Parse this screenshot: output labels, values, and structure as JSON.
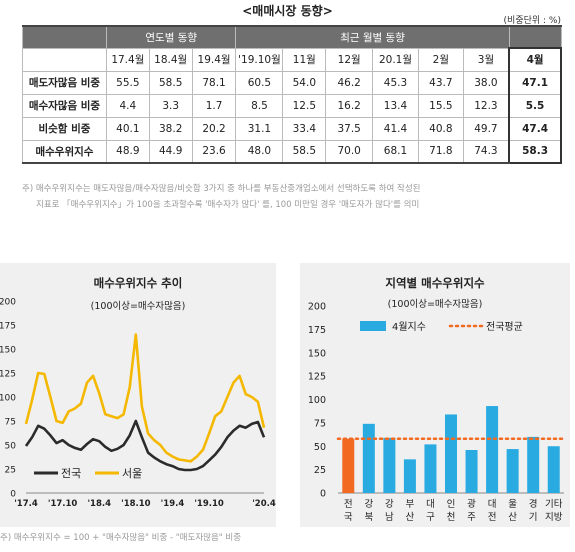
{
  "header": {
    "title": "<매매시장 동향>",
    "unit": "(비중단위 : %)"
  },
  "table": {
    "group_headers": [
      "연도별 동향",
      "최근 월별 동향"
    ],
    "columns": [
      "17.4월",
      "18.4월",
      "19.4월",
      "'19.10월",
      "11월",
      "12월",
      "20.1월",
      "2월",
      "3월",
      "4월"
    ],
    "rows": [
      {
        "label": "매도자많음 비중",
        "values": [
          "55.5",
          "58.5",
          "78.1",
          "60.5",
          "54.0",
          "46.2",
          "45.3",
          "43.7",
          "38.0",
          "47.1"
        ]
      },
      {
        "label": "매수자많음 비중",
        "values": [
          "4.4",
          "3.3",
          "1.7",
          "8.5",
          "12.5",
          "16.2",
          "13.4",
          "15.5",
          "12.3",
          "5.5"
        ]
      },
      {
        "label": "비슷함 비중",
        "values": [
          "40.1",
          "38.2",
          "20.2",
          "31.1",
          "33.4",
          "37.5",
          "41.4",
          "40.8",
          "49.7",
          "47.4"
        ]
      },
      {
        "label": "매수우위지수",
        "values": [
          "48.9",
          "44.9",
          "23.6",
          "48.0",
          "58.5",
          "70.0",
          "68.1",
          "71.8",
          "74.3",
          "58.3"
        ]
      }
    ]
  },
  "notes": {
    "line1": "주)  매수우위지수는 매도자많음/매수자많음/비슷함 3가지 중 하나를 부동산중개업소에서 선택하도록 하여 작성된",
    "line2": "지표로 「매수우위지수」가 100을 초과할수록 '매수자가 많다' 를, 100 미만일 경우 '매도자가 많다'를 의미",
    "bottom": "주) 매수우위지수 = 100 + \"매수자많음\" 비중 - \"매도자많음\" 비중"
  },
  "colors": {
    "nation_line": "#2b2b2b",
    "seoul_line": "#f5b800",
    "bar": "#29abe2",
    "bar_highlight": "#f26a22",
    "avg_line": "#f26a22"
  },
  "chart_data": [
    {
      "type": "line",
      "title": "매수우위지수 추이",
      "subtitle": "(100이상=매수자많음)",
      "x_ticks": [
        "'17.4",
        "'17.10",
        "'18.4",
        "'18.10",
        "'19.4",
        "'19.10",
        "'20.4"
      ],
      "ylim": [
        0,
        200
      ],
      "y_ticks": [
        0,
        25,
        50,
        75,
        100,
        125,
        150,
        175,
        200
      ],
      "series": [
        {
          "name": "전국",
          "values": [
            49,
            58,
            70,
            67,
            60,
            52,
            55,
            50,
            47,
            45,
            51,
            56,
            54,
            48,
            44,
            46,
            50,
            60,
            75,
            58,
            42,
            37,
            33,
            30,
            28,
            25,
            24,
            24,
            25,
            28,
            34,
            40,
            48,
            58,
            65,
            70,
            68,
            72,
            74,
            58
          ]
        },
        {
          "name": "서울",
          "values": [
            72,
            97,
            125,
            124,
            100,
            75,
            73,
            85,
            88,
            93,
            115,
            122,
            104,
            82,
            80,
            78,
            82,
            110,
            165,
            90,
            62,
            55,
            50,
            42,
            38,
            35,
            34,
            33,
            38,
            45,
            62,
            80,
            85,
            100,
            115,
            122,
            103,
            100,
            95,
            68
          ]
        }
      ]
    },
    {
      "type": "bar",
      "title": "지역별 매수우위지수",
      "subtitle": "(100이상=매수자많음)",
      "categories": [
        [
          "전",
          "국"
        ],
        [
          "강",
          "북"
        ],
        [
          "강",
          "남"
        ],
        [
          "부",
          "산"
        ],
        [
          "대",
          "구"
        ],
        [
          "인",
          "천"
        ],
        [
          "광",
          "주"
        ],
        [
          "대",
          "전"
        ],
        [
          "울",
          "산"
        ],
        [
          "경",
          "기"
        ],
        [
          "기타",
          "지방"
        ]
      ],
      "series": [
        {
          "name": "4월지수",
          "values": [
            58,
            74,
            59,
            36,
            52,
            84,
            46,
            93,
            47,
            60,
            50
          ]
        }
      ],
      "reference": {
        "name": "전국평균",
        "value": 58
      },
      "ylim": [
        0,
        200
      ],
      "y_ticks": [
        0,
        25,
        50,
        75,
        100,
        125,
        150,
        175,
        200
      ]
    }
  ]
}
